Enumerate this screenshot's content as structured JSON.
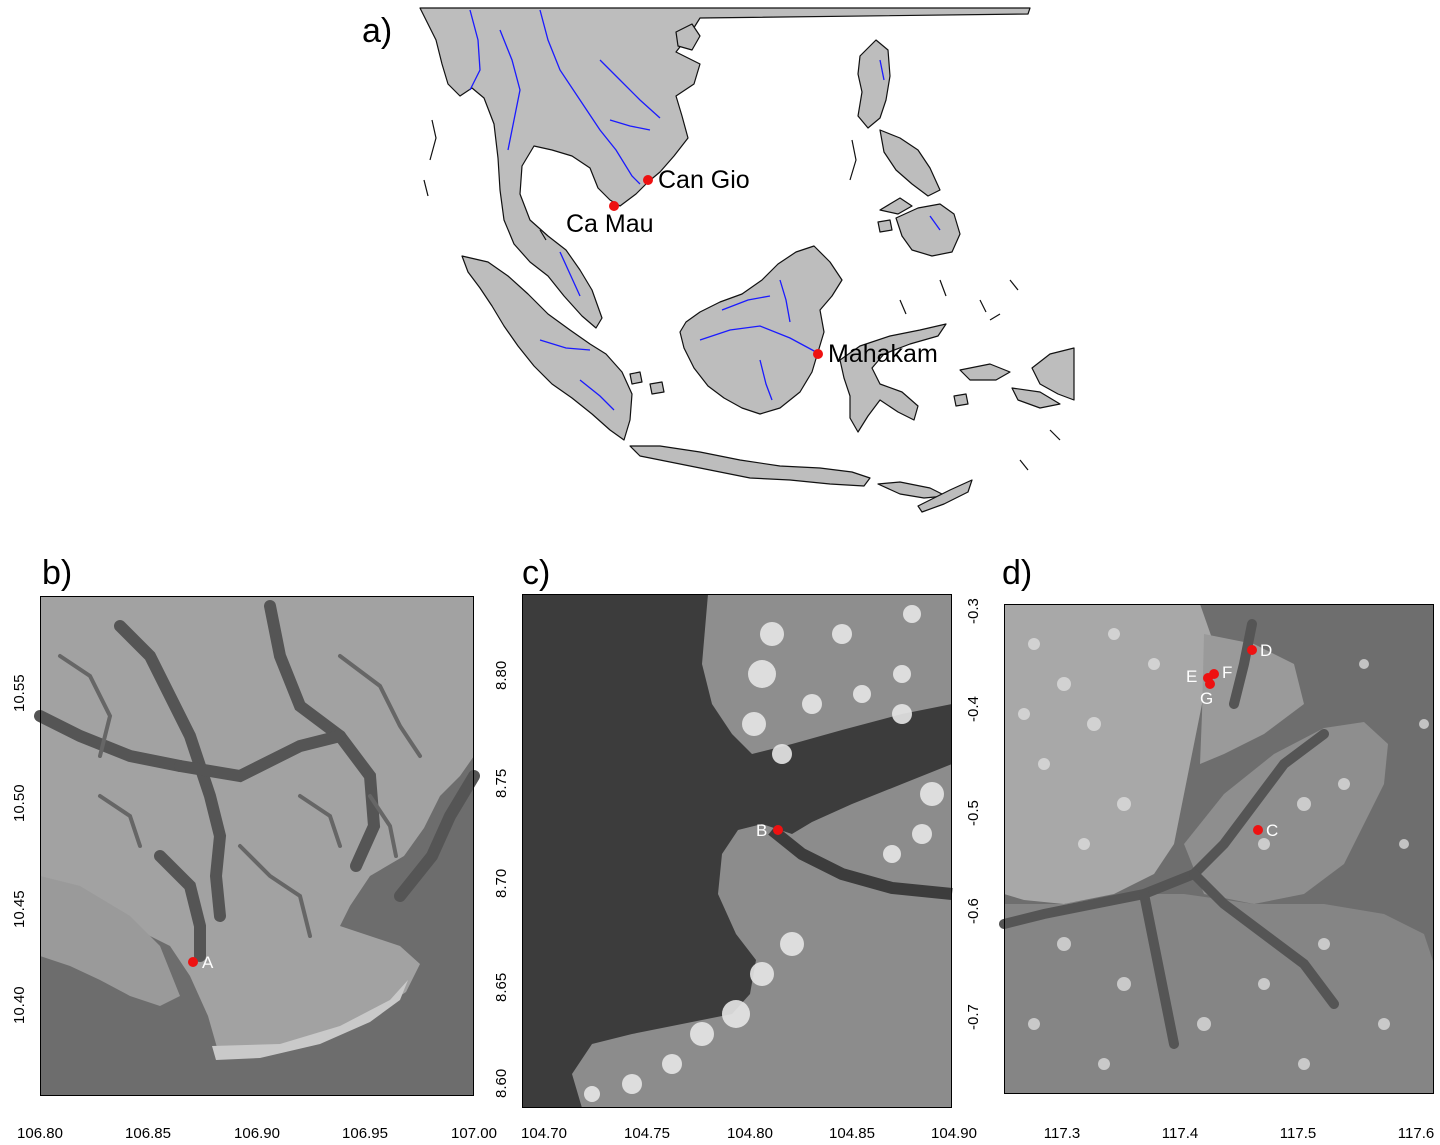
{
  "panels": {
    "a": {
      "label": "a)",
      "sites": [
        "Can Gio",
        "Ca Mau",
        "Mahakam"
      ],
      "colors": {
        "land": "#bdbdbd",
        "coast": "#111111",
        "river": "#1a1aff",
        "site": "#ee1111"
      }
    },
    "b": {
      "label": "b)",
      "point": "A",
      "xticks": [
        "106.80",
        "106.85",
        "106.90",
        "106.95",
        "107.00"
      ],
      "yticks": [
        "10.40",
        "10.45",
        "10.50",
        "10.55"
      ]
    },
    "c": {
      "label": "c)",
      "point": "B",
      "xticks": [
        "104.70",
        "104.75",
        "104.80",
        "104.85",
        "104.90"
      ],
      "yticks": [
        "8.60",
        "8.65",
        "8.70",
        "8.75",
        "8.80"
      ]
    },
    "d": {
      "label": "d)",
      "points": [
        "D",
        "E",
        "F",
        "G",
        "C"
      ],
      "xticks": [
        "117.3",
        "117.4",
        "117.5",
        "117.6"
      ],
      "yticks": [
        "-0.3",
        "-0.4",
        "-0.5",
        "-0.6",
        "-0.7"
      ]
    }
  }
}
